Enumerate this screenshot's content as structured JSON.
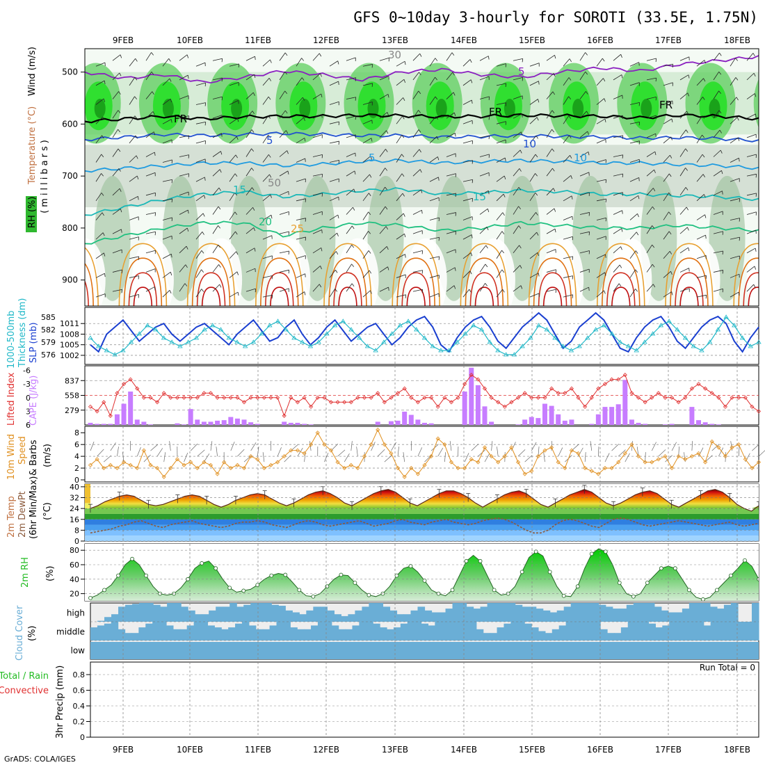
{
  "title": "GFS 0~10day 3-hourly for SOROTI (33.5E, 1.75N)",
  "credit": "GrADS: COLA/IGES",
  "dates": [
    "9FEB",
    "10FEB",
    "11FEB",
    "12FEB",
    "13FEB",
    "14FEB",
    "15FEB",
    "16FEB",
    "17FEB",
    "18FEB"
  ],
  "colors": {
    "dewpt": "#8b5a3c",
    "cape": "#c77dff",
    "li": "#e03030",
    "slp": "#1a3fd0",
    "thick": "#20b8c8",
    "wind": "#e09020",
    "rh_green": "#22bb22",
    "cloud": "#6aaed6"
  },
  "chart_data": [
    {
      "type": "heatmap",
      "id": "upper_air",
      "title": "",
      "ylabel_parts": [
        "Wind (m/s)",
        "Temperature (°C)",
        "RH (%)"
      ],
      "yunit": "(millibars)",
      "ylim": [
        950,
        455
      ],
      "yticks": [
        500,
        600,
        700,
        800,
        900
      ],
      "contour_labels": [
        "5",
        "FR",
        "FR",
        "FR",
        "5",
        "10",
        "5",
        "10",
        "15",
        "15",
        "20",
        "25",
        "30",
        "50"
      ],
      "temp_levels": [
        {
          "label": "-5",
          "color": "#8a1fc0",
          "p": [
            500,
            512,
            505,
            520,
            510,
            498,
            505,
            515,
            500,
            495,
            505,
            510,
            500,
            492,
            498,
            485,
            478,
            470
          ]
        },
        {
          "label": "FR",
          "color": "#000000",
          "p": [
            595,
            590,
            585,
            590,
            586,
            585,
            585,
            583,
            584,
            586,
            585,
            583,
            584,
            585,
            588,
            583,
            585,
            590
          ]
        },
        {
          "label": "5",
          "color": "#2050d0",
          "p": [
            630,
            625,
            620,
            622,
            620,
            618,
            620,
            622,
            622,
            625,
            624,
            622,
            624,
            625,
            627,
            626,
            628,
            632
          ]
        },
        {
          "label": "10",
          "color": "#1f9be0",
          "p": [
            690,
            685,
            680,
            675,
            675,
            680,
            677,
            672,
            670,
            675,
            672,
            670,
            672,
            675,
            675,
            678,
            680,
            685
          ]
        },
        {
          "label": "15",
          "color": "#1ab8b8",
          "p": [
            775,
            760,
            745,
            735,
            730,
            740,
            735,
            728,
            725,
            735,
            732,
            728,
            730,
            735,
            735,
            738,
            740,
            745
          ]
        },
        {
          "label": "20",
          "color": "#20c080",
          "p": [
            830,
            815,
            800,
            790,
            790,
            815,
            800,
            790,
            795,
            805,
            800,
            790,
            795,
            800,
            800,
            795,
            800,
            805
          ]
        }
      ]
    },
    {
      "type": "line",
      "id": "slp_thickness",
      "ylabel_left": "Thickness (dm)",
      "ylabel_left_prefix": "1000-500mb",
      "ylabel_right": "SLP (mb)",
      "yticks_left": [
        576,
        579,
        582,
        585
      ],
      "yticks_right": [
        1002,
        1005,
        1008,
        1011
      ],
      "slp": [
        1005,
        1003,
        1008,
        1010,
        1012,
        1009,
        1006,
        1008,
        1010,
        1011,
        1008,
        1006,
        1008,
        1010,
        1011,
        1009,
        1007,
        1005,
        1008,
        1010,
        1012,
        1009,
        1006,
        1007,
        1010,
        1012,
        1008,
        1005,
        1007,
        1010,
        1012,
        1009,
        1006,
        1008,
        1010,
        1011,
        1008,
        1005,
        1007,
        1010,
        1012,
        1013,
        1010,
        1005,
        1003,
        1007,
        1010,
        1012,
        1013,
        1010,
        1006,
        1004,
        1007,
        1010,
        1012,
        1014,
        1012,
        1008,
        1004,
        1006,
        1010,
        1012,
        1014,
        1012,
        1008,
        1004,
        1003,
        1007,
        1010,
        1012,
        1013,
        1010,
        1006,
        1004,
        1007,
        1010,
        1012,
        1013,
        1011,
        1006,
        1003,
        1007,
        1010
      ],
      "thickness": [
        580,
        578,
        577,
        576,
        577,
        579,
        581,
        583,
        582,
        580,
        579,
        578,
        579,
        580,
        582,
        583,
        582,
        580,
        579,
        578,
        579,
        581,
        583,
        584,
        582,
        580,
        579,
        578,
        579,
        581,
        583,
        584,
        582,
        580,
        578,
        577,
        579,
        581,
        583,
        584,
        582,
        580,
        578,
        577,
        577,
        579,
        581,
        583,
        582,
        579,
        577,
        576,
        576,
        578,
        580,
        583,
        582,
        580,
        578,
        577,
        578,
        580,
        582,
        583,
        581,
        579,
        578,
        577,
        579,
        581,
        583,
        584,
        582,
        580,
        578,
        577,
        579,
        582,
        585,
        583,
        580,
        578,
        579
      ]
    },
    {
      "type": "bar",
      "id": "cape_li",
      "ylabel_left": "Lifted Index",
      "ylabel_right": "CAPE (J/kg)",
      "yticks_left": [
        -6,
        -3,
        0,
        3,
        6
      ],
      "yticks_right": [
        279,
        558,
        837
      ],
      "cape": [
        40,
        20,
        20,
        20,
        200,
        400,
        630,
        100,
        60,
        10,
        0,
        0,
        0,
        30,
        10,
        300,
        100,
        60,
        60,
        80,
        90,
        150,
        120,
        100,
        50,
        20,
        0,
        0,
        0,
        60,
        40,
        40,
        20,
        10,
        0,
        0,
        0,
        0,
        0,
        0,
        0,
        0,
        0,
        60,
        0,
        70,
        80,
        250,
        190,
        100,
        40,
        30,
        0,
        0,
        0,
        0,
        630,
        1080,
        750,
        350,
        60,
        0,
        0,
        0,
        10,
        100,
        150,
        130,
        400,
        360,
        200,
        80,
        100,
        0,
        0,
        20,
        200,
        340,
        340,
        390,
        850,
        100,
        40,
        20,
        0,
        0,
        10,
        20,
        0,
        0,
        340,
        90,
        50,
        20,
        10,
        0,
        0,
        0,
        0,
        0,
        0
      ],
      "lifted_index": [
        2,
        3,
        1,
        4,
        -1,
        -3,
        -4,
        -2,
        0,
        0,
        1,
        -1,
        0,
        0,
        0,
        0,
        0,
        -1,
        -1,
        0,
        0,
        0,
        0,
        1,
        0,
        0,
        0,
        0,
        0,
        4,
        0,
        1,
        0,
        2,
        0,
        0,
        1,
        1,
        1,
        1,
        0,
        0,
        0,
        -1,
        1,
        0,
        -1,
        -2,
        0,
        1,
        0,
        0,
        2,
        0,
        1,
        0,
        -3,
        -5,
        -4,
        -2,
        0,
        1,
        2,
        1,
        0,
        -1,
        0,
        0,
        0,
        -2,
        -1,
        -1,
        -2,
        0,
        2,
        0,
        -2,
        -3,
        -4,
        -4,
        -5,
        -1,
        0,
        1,
        0,
        -1,
        0,
        0,
        1,
        0,
        -2,
        -3,
        -2,
        -1,
        0,
        2,
        0,
        0,
        0,
        2,
        3
      ]
    },
    {
      "type": "line",
      "id": "wind10m",
      "ylabel": "10m Wind Speed & Barbs (m/s)",
      "ylabel_parts": [
        "10m Wind",
        "Speed",
        "& Barbs",
        "(m/s)"
      ],
      "ylim": [
        0,
        8
      ],
      "yticks": [
        0,
        2,
        4,
        6,
        8
      ],
      "speed": [
        2.5,
        3.5,
        2.0,
        2.5,
        2.0,
        3.0,
        2.5,
        2.0,
        5.0,
        2.5,
        2.0,
        0.5,
        2.0,
        3.5,
        2.5,
        3.0,
        2.0,
        3.0,
        2.5,
        1.0,
        3.0,
        2.0,
        2.5,
        2.0,
        4.0,
        3.5,
        2.0,
        2.5,
        3.0,
        4.0,
        5.0,
        5.0,
        4.5,
        6.0,
        8.0,
        6.0,
        5.0,
        3.0,
        2.0,
        2.5,
        2.0,
        4.0,
        6.0,
        8.5,
        6.0,
        4.5,
        2.0,
        0.5,
        2.0,
        1.0,
        2.5,
        4.0,
        7.0,
        6.0,
        3.0,
        2.0,
        2.0,
        3.5,
        3.0,
        5.5,
        4.0,
        3.0,
        4.0,
        5.5,
        3.0,
        1.0,
        1.5,
        4.0,
        5.0,
        5.5,
        3.0,
        2.0,
        5.0,
        4.5,
        2.0,
        1.5,
        1.0,
        2.0,
        2.0,
        3.0,
        4.5,
        6.0,
        4.0,
        3.0,
        3.0,
        3.5,
        4.0,
        2.0,
        4.0,
        3.5,
        4.0,
        4.5,
        3.0,
        6.5,
        5.5,
        4.0,
        5.5,
        6.0,
        3.5,
        2.0,
        3.0
      ]
    },
    {
      "type": "area",
      "id": "temp2m",
      "ylabel_parts": [
        "2m Temp",
        "2m DewPt",
        "(6hr Min/Max)",
        "(°C)"
      ],
      "ylim": [
        0,
        42
      ],
      "yticks": [
        0,
        8,
        16,
        24,
        32,
        40
      ],
      "temp": [
        24,
        26,
        29,
        31,
        33,
        34,
        33,
        30,
        27,
        26,
        27,
        29,
        31,
        33,
        34,
        33,
        30,
        27,
        25,
        27,
        30,
        32,
        34,
        35,
        34,
        31,
        28,
        26,
        28,
        31,
        34,
        36,
        37,
        35,
        32,
        28,
        26,
        29,
        32,
        35,
        37,
        38,
        36,
        32,
        28,
        26,
        29,
        32,
        35,
        37,
        37,
        35,
        32,
        28,
        25,
        28,
        31,
        34,
        36,
        37,
        35,
        31,
        27,
        25,
        28,
        31,
        34,
        36,
        38,
        36,
        32,
        28,
        26,
        28,
        31,
        34,
        36,
        37,
        35,
        31,
        27,
        25,
        28,
        31,
        34,
        37,
        38,
        36,
        32,
        27,
        24,
        22,
        26
      ],
      "dewpt": [
        6,
        7,
        8,
        9,
        11,
        12,
        14,
        15,
        13,
        11,
        10,
        12,
        13,
        14,
        15,
        13,
        12,
        11,
        10,
        11,
        13,
        14,
        14,
        15,
        14,
        12,
        11,
        10,
        12,
        14,
        15,
        14,
        12,
        11,
        12,
        13,
        14,
        15,
        13,
        11,
        12,
        13,
        15,
        16,
        14,
        13,
        12,
        14,
        15,
        16,
        14,
        13,
        12,
        13,
        15,
        16,
        17,
        16,
        14,
        11,
        8,
        6,
        6,
        8,
        12,
        15,
        16,
        15,
        13,
        11,
        10,
        13,
        16,
        17,
        16,
        14,
        12,
        11,
        12,
        13,
        14,
        15,
        14,
        13,
        12,
        11,
        12,
        13,
        14,
        12,
        11,
        12,
        13
      ]
    },
    {
      "type": "area",
      "id": "rh2m",
      "ylabel": "2m RH",
      "yunit": "(%)",
      "ylim": [
        10,
        85
      ],
      "yticks": [
        20,
        40,
        60,
        80
      ],
      "rh": [
        14,
        18,
        25,
        32,
        45,
        60,
        68,
        60,
        45,
        30,
        20,
        18,
        20,
        28,
        40,
        55,
        62,
        65,
        55,
        40,
        28,
        22,
        24,
        26,
        32,
        40,
        45,
        48,
        46,
        36,
        25,
        17,
        16,
        20,
        30,
        40,
        46,
        45,
        35,
        25,
        18,
        16,
        20,
        30,
        45,
        55,
        58,
        50,
        38,
        25,
        20,
        17,
        25,
        45,
        65,
        73,
        65,
        45,
        25,
        18,
        20,
        30,
        50,
        70,
        78,
        72,
        50,
        30,
        17,
        16,
        30,
        55,
        75,
        82,
        78,
        60,
        35,
        20,
        16,
        20,
        35,
        45,
        55,
        58,
        55,
        40,
        25,
        15,
        12,
        15,
        25,
        35,
        45,
        55,
        66,
        58,
        40
      ]
    },
    {
      "type": "heatmap",
      "id": "cloud",
      "ylabel": "Cloud Cover",
      "yunit": "(%)",
      "rows": [
        "high",
        "middle",
        "low"
      ],
      "high": [
        0,
        5,
        25,
        40,
        80,
        90,
        95,
        100,
        100,
        90,
        80,
        100,
        100,
        80,
        60,
        40,
        40,
        60,
        80,
        80,
        100,
        80,
        90,
        100,
        100,
        100,
        90,
        85,
        60,
        50,
        40,
        60,
        80,
        80,
        60,
        40,
        30,
        40,
        60,
        80,
        100,
        100,
        80,
        60,
        40,
        40,
        60,
        80,
        60,
        50,
        50,
        70,
        100,
        100,
        80,
        70,
        80,
        100,
        100,
        100,
        100,
        90,
        80,
        80,
        70,
        60,
        50,
        60,
        80,
        100,
        100,
        100,
        100,
        90,
        80,
        70,
        70,
        90,
        100,
        100,
        100,
        80,
        60,
        50,
        50,
        70,
        100,
        100,
        100,
        80,
        70,
        90,
        100,
        0,
        0,
        100
      ],
      "middle": [
        70,
        80,
        90,
        100,
        60,
        40,
        40,
        70,
        90,
        100,
        100,
        80,
        60,
        60,
        80,
        100,
        100,
        80,
        70,
        60,
        70,
        90,
        100,
        80,
        60,
        60,
        80,
        100,
        100,
        70,
        60,
        60,
        80,
        100,
        100,
        80,
        60,
        60,
        80,
        100,
        100,
        90,
        70,
        60,
        70,
        90,
        100,
        100,
        90,
        80,
        100,
        100,
        100,
        100,
        100,
        100,
        60,
        40,
        40,
        70,
        90,
        100,
        100,
        90,
        70,
        50,
        40,
        60,
        80,
        100,
        100,
        100,
        100,
        100,
        60,
        40,
        40,
        70,
        100,
        100,
        100,
        90,
        70,
        80,
        100,
        100,
        100,
        100,
        100,
        80,
        100,
        100,
        100,
        100,
        100,
        100,
        100
      ],
      "low": [
        0,
        0,
        0,
        0,
        0,
        0,
        0,
        0,
        0,
        0,
        0,
        0,
        0,
        0,
        0,
        0,
        0,
        0,
        0,
        0,
        0,
        0,
        0,
        0,
        0,
        0,
        0,
        0,
        0,
        0,
        0,
        0,
        0,
        0,
        0,
        0,
        0,
        0,
        0,
        0,
        0,
        0,
        0,
        0,
        0,
        0,
        0,
        0,
        0,
        0,
        0,
        0,
        0,
        0,
        0,
        0,
        0,
        0,
        0,
        0,
        0,
        0,
        0,
        0,
        0,
        0,
        0,
        0,
        0,
        0,
        0,
        0,
        0,
        0,
        0,
        0,
        0,
        0,
        0,
        0,
        0,
        0,
        0,
        0,
        0,
        0,
        0,
        0,
        0,
        0,
        0,
        0,
        0,
        0,
        0,
        0,
        0
      ]
    },
    {
      "type": "bar",
      "id": "precip",
      "ylabel_parts": [
        "Total / Rain",
        "Convective",
        "3hr Precip (mm)"
      ],
      "ylim": [
        0,
        0.96
      ],
      "yticks": [
        0,
        0.2,
        0.4,
        0.6,
        0.8
      ],
      "ytick_labels": [
        "0",
        "0.2",
        "0.4",
        "0.6",
        "0.8"
      ],
      "annotation": "Run Total = 0",
      "values": []
    }
  ]
}
